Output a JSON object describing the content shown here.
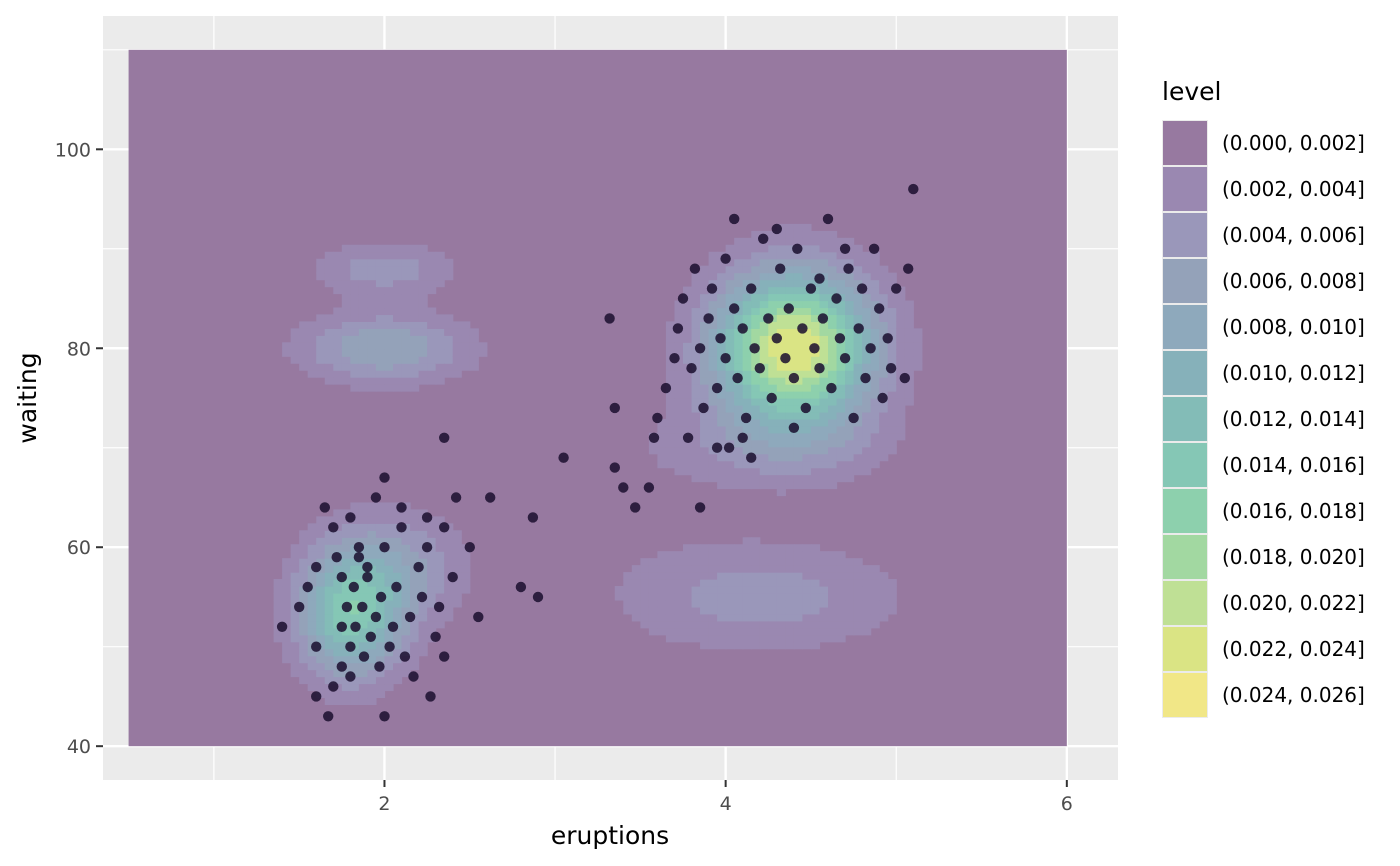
{
  "chart_data": {
    "type": "contour",
    "xlabel": "eruptions",
    "ylabel": "waiting",
    "xlim": [
      0.35,
      6.3
    ],
    "ylim": [
      36.6,
      113.4
    ],
    "x_ticks": [
      {
        "value": 2,
        "label": "2"
      },
      {
        "value": 4,
        "label": "4"
      },
      {
        "value": 6,
        "label": "6"
      }
    ],
    "y_ticks": [
      {
        "value": 40,
        "label": "40"
      },
      {
        "value": 60,
        "label": "60"
      },
      {
        "value": 80,
        "label": "80"
      },
      {
        "value": 100,
        "label": "100"
      }
    ],
    "grid": true,
    "panel_background": "#ebebeb",
    "density_region": {
      "x": [
        0.5,
        6.0
      ],
      "y": [
        40,
        110
      ]
    },
    "legend": {
      "title": "level",
      "position": "right",
      "entries": [
        {
          "label": "(0.000, 0.002]",
          "color": "#9779a0"
        },
        {
          "label": "(0.002, 0.004]",
          "color": "#9a88b1"
        },
        {
          "label": "(0.004, 0.006]",
          "color": "#9a97ba"
        },
        {
          "label": "(0.006, 0.008]",
          "color": "#94a2b9"
        },
        {
          "label": "(0.008, 0.010]",
          "color": "#8ea9bc"
        },
        {
          "label": "(0.010, 0.012]",
          "color": "#86b1ba"
        },
        {
          "label": "(0.012, 0.014]",
          "color": "#83bcb7"
        },
        {
          "label": "(0.014, 0.016]",
          "color": "#85c7b5"
        },
        {
          "label": "(0.016, 0.018]",
          "color": "#8dd0ad"
        },
        {
          "label": "(0.018, 0.020]",
          "color": "#a2d8a1"
        },
        {
          "label": "(0.020, 0.022]",
          "color": "#bfe095"
        },
        {
          "label": "(0.022, 0.024]",
          "color": "#dae484"
        },
        {
          "label": "(0.024, 0.026]",
          "color": "#f1e787"
        }
      ]
    },
    "density_peaks": [
      {
        "x": 4.4,
        "y": 80,
        "sx": 0.33,
        "sy": 5.5,
        "w": 0.024
      },
      {
        "x": 1.8,
        "y": 53,
        "sx": 0.22,
        "sy": 4.5,
        "w": 0.014
      },
      {
        "x": 2.05,
        "y": 58,
        "sx": 0.3,
        "sy": 4,
        "w": 0.006
      },
      {
        "x": 2.0,
        "y": 80,
        "sx": 0.35,
        "sy": 2.5,
        "w": 0.008
      },
      {
        "x": 2.0,
        "y": 88,
        "sx": 0.3,
        "sy": 2,
        "w": 0.005
      },
      {
        "x": 4.2,
        "y": 55,
        "sx": 0.6,
        "sy": 4,
        "w": 0.005
      },
      {
        "x": 4.3,
        "y": 70,
        "sx": 0.5,
        "sy": 3,
        "w": 0.003
      },
      {
        "x": 3.3,
        "y": 68,
        "sx": 0.5,
        "sy": 6,
        "w": 0.001
      }
    ],
    "points": [
      [
        1.6,
        45
      ],
      [
        1.67,
        43
      ],
      [
        1.7,
        46
      ],
      [
        1.75,
        48
      ],
      [
        1.75,
        52
      ],
      [
        1.78,
        54
      ],
      [
        1.8,
        47
      ],
      [
        1.8,
        50
      ],
      [
        1.82,
        56
      ],
      [
        1.83,
        52
      ],
      [
        1.85,
        59
      ],
      [
        1.87,
        54
      ],
      [
        1.88,
        49
      ],
      [
        1.9,
        57
      ],
      [
        1.92,
        51
      ],
      [
        1.95,
        53
      ],
      [
        1.97,
        48
      ],
      [
        1.98,
        55
      ],
      [
        2.0,
        60
      ],
      [
        2.0,
        43
      ],
      [
        2.03,
        50
      ],
      [
        2.05,
        52
      ],
      [
        2.07,
        56
      ],
      [
        2.1,
        62
      ],
      [
        2.12,
        49
      ],
      [
        2.15,
        53
      ],
      [
        2.17,
        47
      ],
      [
        2.2,
        58
      ],
      [
        2.22,
        55
      ],
      [
        2.25,
        60
      ],
      [
        2.27,
        45
      ],
      [
        2.3,
        51
      ],
      [
        2.32,
        54
      ],
      [
        2.35,
        49
      ],
      [
        2.4,
        57
      ],
      [
        1.4,
        52
      ],
      [
        1.5,
        54
      ],
      [
        1.55,
        56
      ],
      [
        1.6,
        50
      ],
      [
        1.6,
        58
      ],
      [
        1.65,
        64
      ],
      [
        1.7,
        62
      ],
      [
        1.72,
        59
      ],
      [
        1.75,
        57
      ],
      [
        1.8,
        63
      ],
      [
        1.85,
        60
      ],
      [
        1.9,
        58
      ],
      [
        1.95,
        65
      ],
      [
        2.0,
        67
      ],
      [
        2.1,
        64
      ],
      [
        2.25,
        63
      ],
      [
        2.35,
        62
      ],
      [
        2.42,
        65
      ],
      [
        2.5,
        60
      ],
      [
        2.55,
        53
      ],
      [
        2.62,
        65
      ],
      [
        2.8,
        56
      ],
      [
        2.87,
        63
      ],
      [
        2.9,
        55
      ],
      [
        2.35,
        71
      ],
      [
        3.05,
        69
      ],
      [
        3.32,
        83
      ],
      [
        3.35,
        74
      ],
      [
        3.35,
        68
      ],
      [
        3.4,
        66
      ],
      [
        3.47,
        64
      ],
      [
        3.55,
        66
      ],
      [
        3.58,
        71
      ],
      [
        3.6,
        73
      ],
      [
        3.65,
        76
      ],
      [
        3.7,
        79
      ],
      [
        3.72,
        82
      ],
      [
        3.75,
        85
      ],
      [
        3.78,
        71
      ],
      [
        3.8,
        78
      ],
      [
        3.82,
        88
      ],
      [
        3.85,
        80
      ],
      [
        3.87,
        74
      ],
      [
        3.9,
        83
      ],
      [
        3.92,
        86
      ],
      [
        3.95,
        76
      ],
      [
        3.97,
        81
      ],
      [
        4.0,
        79
      ],
      [
        4.0,
        89
      ],
      [
        4.02,
        70
      ],
      [
        4.05,
        84
      ],
      [
        4.07,
        77
      ],
      [
        4.1,
        82
      ],
      [
        4.12,
        73
      ],
      [
        4.15,
        86
      ],
      [
        4.17,
        80
      ],
      [
        4.2,
        78
      ],
      [
        4.22,
        91
      ],
      [
        4.25,
        83
      ],
      [
        4.27,
        75
      ],
      [
        4.3,
        81
      ],
      [
        4.32,
        88
      ],
      [
        4.35,
        79
      ],
      [
        4.37,
        84
      ],
      [
        4.4,
        77
      ],
      [
        4.42,
        90
      ],
      [
        4.45,
        82
      ],
      [
        4.47,
        74
      ],
      [
        4.5,
        86
      ],
      [
        4.52,
        80
      ],
      [
        4.55,
        78
      ],
      [
        4.57,
        83
      ],
      [
        4.6,
        93
      ],
      [
        4.62,
        76
      ],
      [
        4.65,
        85
      ],
      [
        4.67,
        81
      ],
      [
        4.7,
        79
      ],
      [
        4.72,
        88
      ],
      [
        4.75,
        73
      ],
      [
        4.78,
        82
      ],
      [
        4.8,
        86
      ],
      [
        4.82,
        77
      ],
      [
        4.85,
        80
      ],
      [
        4.87,
        90
      ],
      [
        4.9,
        84
      ],
      [
        4.92,
        75
      ],
      [
        4.95,
        81
      ],
      [
        4.97,
        78
      ],
      [
        5.0,
        86
      ],
      [
        5.05,
        77
      ],
      [
        5.1,
        96
      ],
      [
        5.07,
        88
      ],
      [
        4.1,
        71
      ],
      [
        4.15,
        69
      ],
      [
        3.95,
        70
      ],
      [
        3.85,
        64
      ],
      [
        4.05,
        93
      ],
      [
        4.4,
        72
      ],
      [
        4.55,
        87
      ],
      [
        4.7,
        90
      ],
      [
        4.3,
        92
      ]
    ]
  }
}
